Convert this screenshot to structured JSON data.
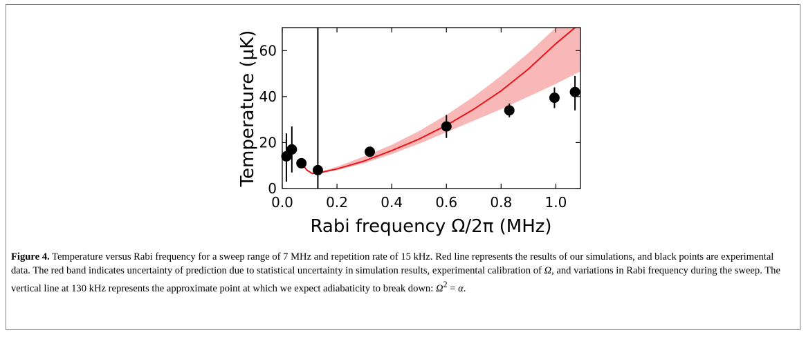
{
  "chart_data": {
    "type": "scatter",
    "xlabel": "Rabi frequency Ω/2π (MHz)",
    "ylabel": "Temperature (μK)",
    "xlim": [
      0,
      1.09
    ],
    "ylim": [
      0,
      70
    ],
    "x_ticks": [
      "0.0",
      "0.2",
      "0.4",
      "0.6",
      "0.8",
      "1.0"
    ],
    "y_ticks": [
      "0",
      "20",
      "40",
      "60"
    ],
    "grid": false,
    "colors": {
      "line": "#e8141a",
      "band": "#f9b8b8",
      "points": "#000000"
    },
    "series": [
      {
        "kind": "points_with_errorbars",
        "points": [
          {
            "x": 0.015,
            "y": 14,
            "yerr_low": 3,
            "yerr_high": 24
          },
          {
            "x": 0.035,
            "y": 17,
            "yerr_low": 7,
            "yerr_high": 27
          },
          {
            "x": 0.07,
            "y": 11,
            "yerr_low": 9.5,
            "yerr_high": 12.5
          },
          {
            "x": 0.13,
            "y": 8,
            "yerr_low": 0,
            "yerr_high": 70
          },
          {
            "x": 0.32,
            "y": 16,
            "yerr_low": 14.5,
            "yerr_high": 17.5
          },
          {
            "x": 0.6,
            "y": 27,
            "yerr_low": 22,
            "yerr_high": 32
          },
          {
            "x": 0.83,
            "y": 34,
            "yerr_low": 31,
            "yerr_high": 37
          },
          {
            "x": 0.995,
            "y": 39.5,
            "yerr_low": 35,
            "yerr_high": 44
          },
          {
            "x": 1.07,
            "y": 42,
            "yerr_low": 34,
            "yerr_high": 49
          }
        ]
      },
      {
        "kind": "line",
        "x": [
          0.07,
          0.09,
          0.11,
          0.13,
          0.15,
          0.2,
          0.3,
          0.4,
          0.5,
          0.6,
          0.7,
          0.8,
          0.9,
          1.0,
          1.09
        ],
        "y": [
          11,
          8,
          6.5,
          6.8,
          7.2,
          8.5,
          12,
          16.5,
          21.5,
          27.5,
          34.5,
          42.5,
          52,
          63,
          72
        ]
      },
      {
        "kind": "band",
        "x": [
          0.13,
          0.2,
          0.3,
          0.4,
          0.5,
          0.6,
          0.7,
          0.8,
          0.9,
          1.0,
          1.09
        ],
        "lower": [
          6.5,
          8,
          11,
          15,
          19.5,
          24.5,
          29.5,
          34.5,
          40,
          45.5,
          51
        ],
        "upper": [
          7,
          9.5,
          14,
          19,
          25,
          32,
          40,
          49,
          59,
          70,
          78
        ]
      }
    ]
  },
  "caption": {
    "label": "Figure 4.",
    "text1": " Temperature versus Rabi frequency for a sweep range of 7 MHz and repetition rate of 15 kHz. Red line represents the results of our simulations, and black points are experimental data. The red band indicates uncertainty of prediction due to statistical uncertainty in simulation results, experimental calibration of ",
    "sym_omega": "Ω",
    "text2": ", and variations in Rabi frequency during the sweep. The vertical line at 130 kHz represents the approximate point at which we expect adiabaticity to break down: ",
    "sym_omega2": "Ω",
    "sym_sq": "2",
    "sym_eq": " = ",
    "sym_alpha": "α",
    "text3": "."
  }
}
